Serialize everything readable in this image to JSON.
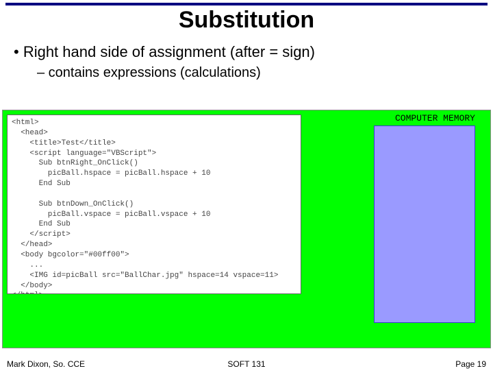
{
  "title": "Substitution",
  "bullet_main": "• Right hand side of assignment (after = sign)",
  "bullet_sub": "– contains expressions (calculations)",
  "memory_label": "COMPUTER MEMORY",
  "code_lines": [
    "<html>",
    "  <head>",
    "    <title>Test</title>",
    "    <script language=\"VBScript\">",
    "      Sub btnRight_OnClick()",
    "        picBall.hspace = picBall.hspace + 10",
    "      End Sub",
    "",
    "      Sub btnDown_OnClick()",
    "        picBall.vspace = picBall.vspace + 10",
    "      End Sub",
    "    </script>",
    "  </head>",
    "  <body bgcolor=\"#00ff00\">",
    "    ...",
    "    <IMG id=picBall src=\"BallChar.jpg\" hspace=14 vspace=11>",
    "  </body>",
    "</html>"
  ],
  "footer_left": "Mark Dixon, So. CCE",
  "footer_center": "SOFT 131",
  "footer_right": "Page 19",
  "colors": {
    "rule": "#000080",
    "panel_bg": "#00ff00",
    "memory_bg": "#9a9aff",
    "memory_border": "#3a3ad0",
    "code_text": "#444444"
  }
}
